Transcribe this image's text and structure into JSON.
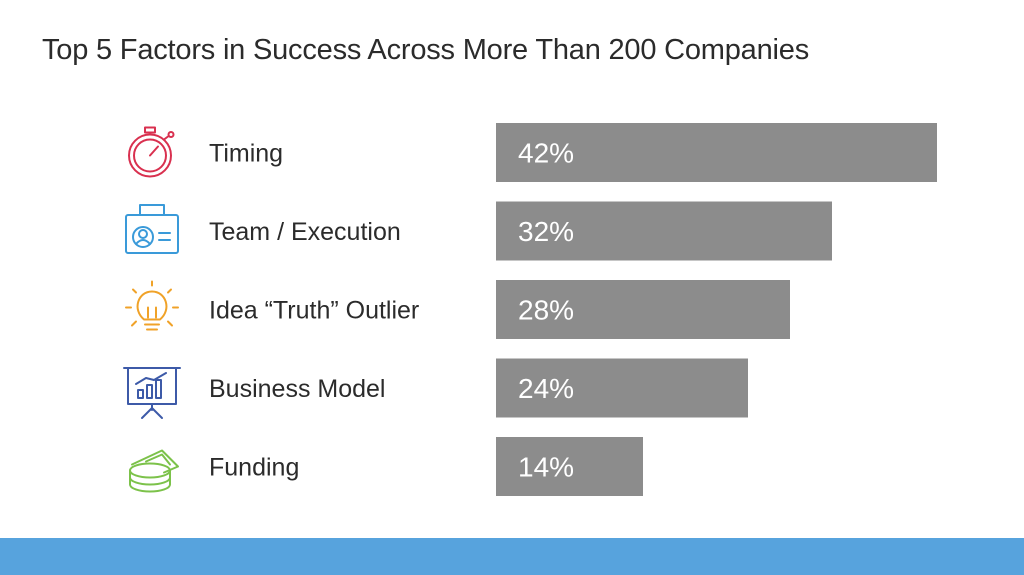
{
  "slide": {
    "title": "Top 5 Factors in Success Across More Than 200 Companies"
  },
  "chart_data": {
    "type": "bar",
    "orientation": "horizontal",
    "title": "Top 5 Factors in Success Across More Than 200 Companies",
    "categories": [
      "Timing",
      "Team / Execution",
      "Idea “Truth” Outlier",
      "Business Model",
      "Funding"
    ],
    "values": [
      42,
      32,
      28,
      24,
      14
    ],
    "value_labels": [
      "42%",
      "32%",
      "28%",
      "24%",
      "14%"
    ],
    "unit": "%",
    "icons": [
      "stopwatch-icon",
      "id-badge-icon",
      "lightbulb-icon",
      "presentation-board-icon",
      "money-stack-icon"
    ],
    "icon_colors": [
      "#d9304f",
      "#3a9ad9",
      "#f0a228",
      "#3d5aa8",
      "#7cc24a"
    ],
    "bar_color": "#8c8c8c",
    "value_label_color": "#ffffff",
    "grid": false,
    "legend": "none"
  },
  "colors": {
    "footer_bar": "#57a3dd",
    "title_text": "#2b2b2b",
    "category_text": "#2b2b2b"
  }
}
